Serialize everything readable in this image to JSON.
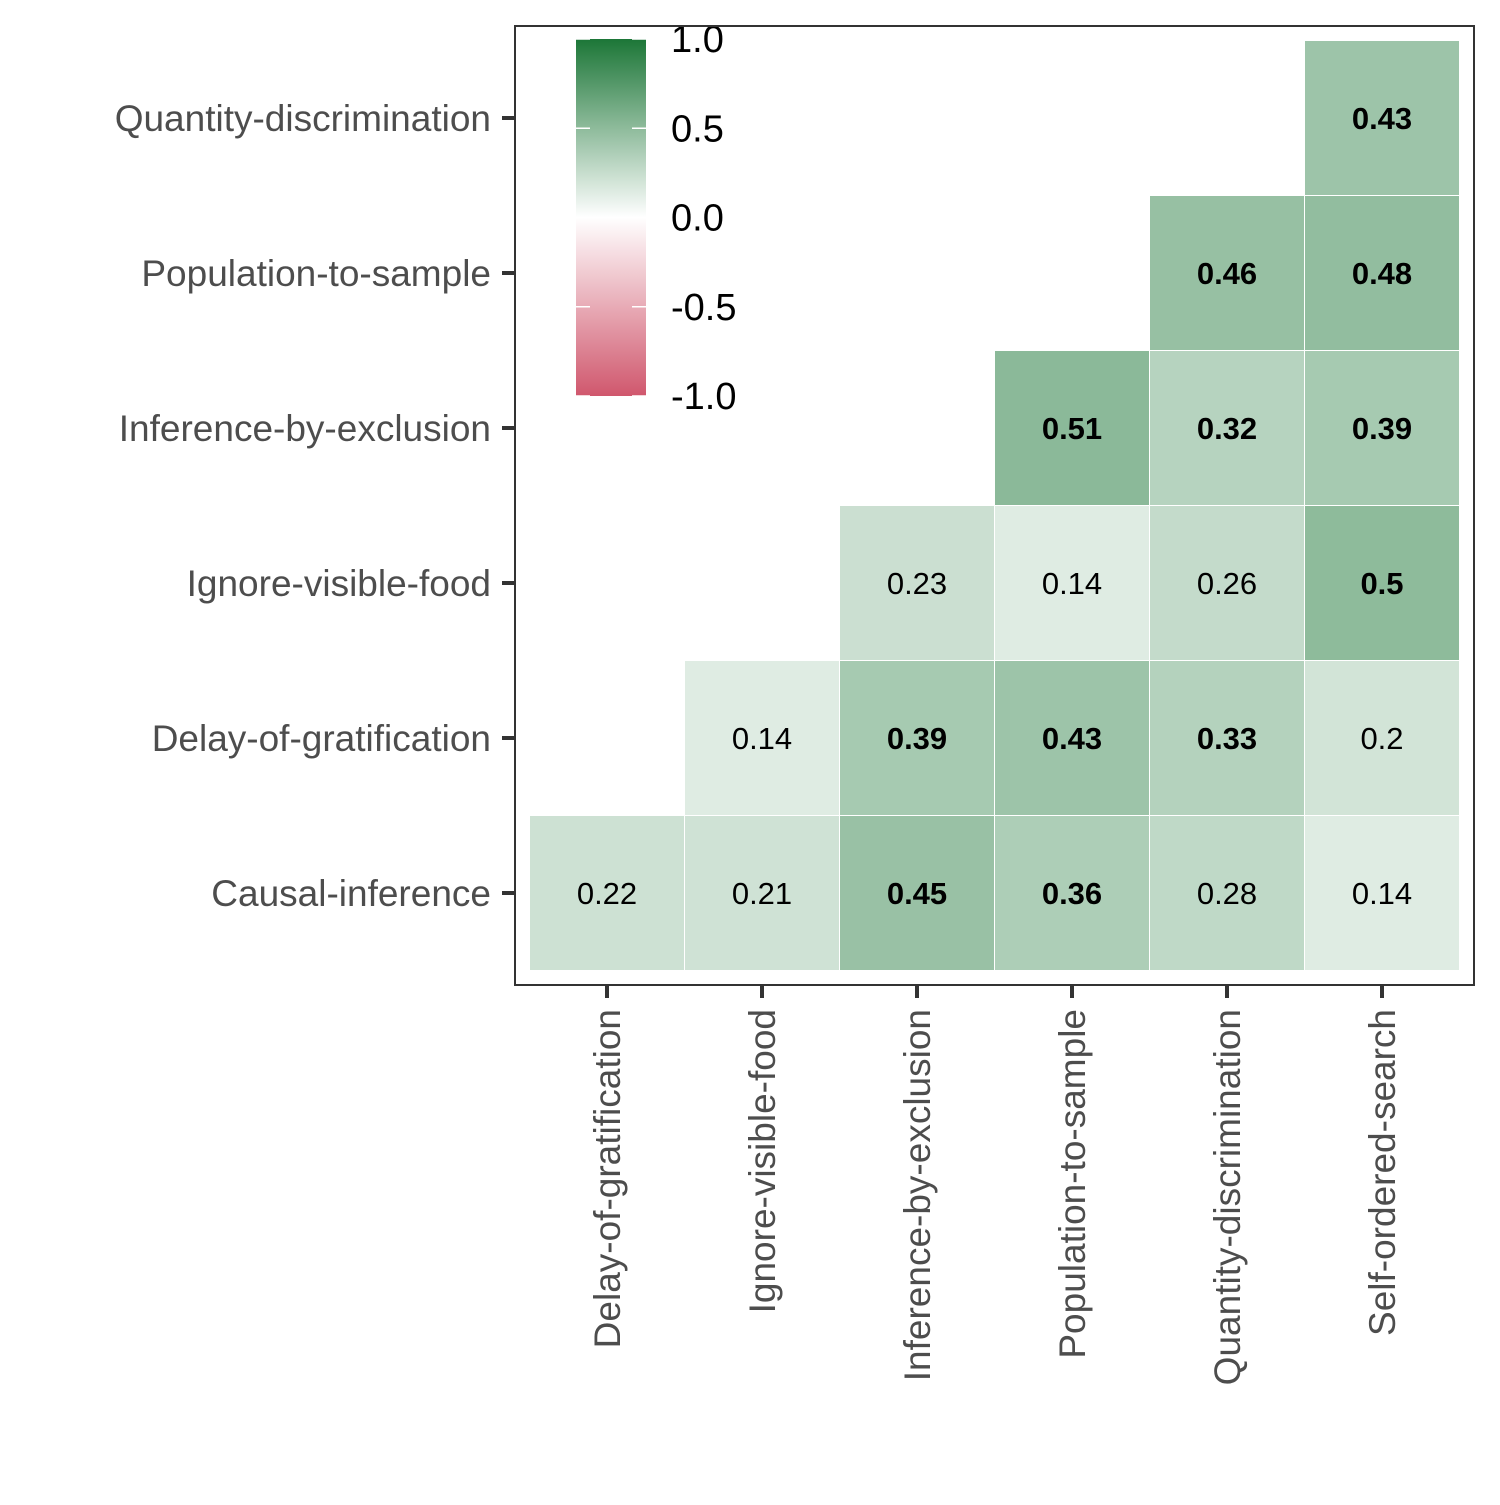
{
  "chart_data": {
    "type": "heatmap",
    "x_categories": [
      "Delay-of-gratification",
      "Ignore-visible-food",
      "Inference-by-exclusion",
      "Population-to-sample",
      "Quantity-discrimination",
      "Self-ordered-search"
    ],
    "y_categories": [
      "Causal-inference",
      "Delay-of-gratification",
      "Ignore-visible-food",
      "Inference-by-exclusion",
      "Population-to-sample",
      "Quantity-discrimination"
    ],
    "cells": [
      {
        "x": "Delay-of-gratification",
        "y": "Causal-inference",
        "value": 0.22,
        "label": "0.22",
        "bold": false
      },
      {
        "x": "Ignore-visible-food",
        "y": "Causal-inference",
        "value": 0.21,
        "label": "0.21",
        "bold": false
      },
      {
        "x": "Inference-by-exclusion",
        "y": "Causal-inference",
        "value": 0.45,
        "label": "0.45",
        "bold": true
      },
      {
        "x": "Population-to-sample",
        "y": "Causal-inference",
        "value": 0.36,
        "label": "0.36",
        "bold": true
      },
      {
        "x": "Quantity-discrimination",
        "y": "Causal-inference",
        "value": 0.28,
        "label": "0.28",
        "bold": false
      },
      {
        "x": "Self-ordered-search",
        "y": "Causal-inference",
        "value": 0.14,
        "label": "0.14",
        "bold": false
      },
      {
        "x": "Ignore-visible-food",
        "y": "Delay-of-gratification",
        "value": 0.14,
        "label": "0.14",
        "bold": false
      },
      {
        "x": "Inference-by-exclusion",
        "y": "Delay-of-gratification",
        "value": 0.39,
        "label": "0.39",
        "bold": true
      },
      {
        "x": "Population-to-sample",
        "y": "Delay-of-gratification",
        "value": 0.43,
        "label": "0.43",
        "bold": true
      },
      {
        "x": "Quantity-discrimination",
        "y": "Delay-of-gratification",
        "value": 0.33,
        "label": "0.33",
        "bold": true
      },
      {
        "x": "Self-ordered-search",
        "y": "Delay-of-gratification",
        "value": 0.2,
        "label": "0.2",
        "bold": false
      },
      {
        "x": "Inference-by-exclusion",
        "y": "Ignore-visible-food",
        "value": 0.23,
        "label": "0.23",
        "bold": false
      },
      {
        "x": "Population-to-sample",
        "y": "Ignore-visible-food",
        "value": 0.14,
        "label": "0.14",
        "bold": false
      },
      {
        "x": "Quantity-discrimination",
        "y": "Ignore-visible-food",
        "value": 0.26,
        "label": "0.26",
        "bold": false
      },
      {
        "x": "Self-ordered-search",
        "y": "Ignore-visible-food",
        "value": 0.5,
        "label": "0.5",
        "bold": true
      },
      {
        "x": "Population-to-sample",
        "y": "Inference-by-exclusion",
        "value": 0.51,
        "label": "0.51",
        "bold": true
      },
      {
        "x": "Quantity-discrimination",
        "y": "Inference-by-exclusion",
        "value": 0.32,
        "label": "0.32",
        "bold": true
      },
      {
        "x": "Self-ordered-search",
        "y": "Inference-by-exclusion",
        "value": 0.39,
        "label": "0.39",
        "bold": true
      },
      {
        "x": "Quantity-discrimination",
        "y": "Population-to-sample",
        "value": 0.46,
        "label": "0.46",
        "bold": true
      },
      {
        "x": "Self-ordered-search",
        "y": "Population-to-sample",
        "value": 0.48,
        "label": "0.48",
        "bold": true
      },
      {
        "x": "Self-ordered-search",
        "y": "Quantity-discrimination",
        "value": 0.43,
        "label": "0.43",
        "bold": true
      }
    ],
    "color_scale": {
      "min": -1.0,
      "mid": 0.0,
      "max": 1.0,
      "low_color": "#d0576d",
      "mid_color": "#ffffff",
      "high_color": "#1c7637"
    },
    "legend": {
      "placement": "top-left inside",
      "ticks": [
        "1.0",
        "0.5",
        "0.0",
        "-0.5",
        "-1.0"
      ],
      "tick_values": [
        1.0,
        0.5,
        0.0,
        -0.5,
        -1.0
      ]
    },
    "title": "",
    "xlabel": "",
    "ylabel": "",
    "grid": false
  }
}
